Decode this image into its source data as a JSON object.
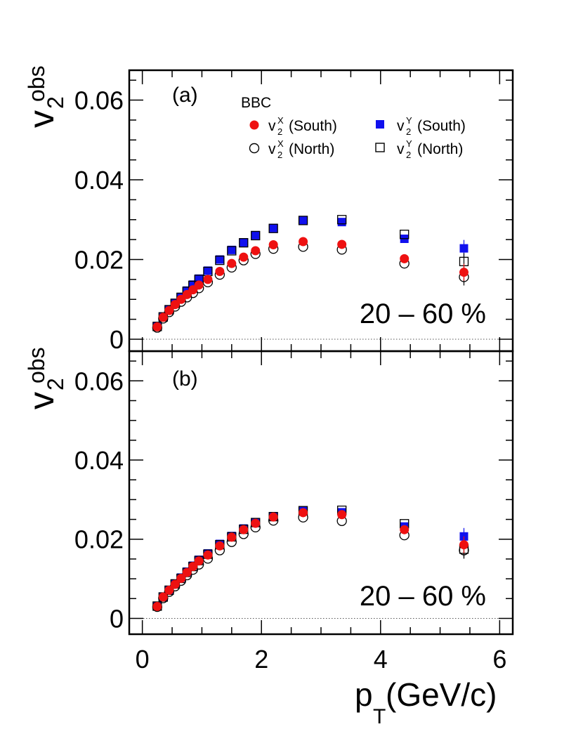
{
  "chart_data": [
    {
      "type": "scatter",
      "panel_label": "(a)",
      "centrality": "20 – 60 %",
      "legend_title": "BBC",
      "ylim": [
        -0.003,
        0.0675
      ],
      "xlim": [
        -0.22,
        6.22
      ],
      "yticks": [
        "0",
        "0.02",
        "0.04",
        "0.06"
      ],
      "reference_line_y": 0,
      "series": [
        {
          "name": "(South)",
          "sym_sup": "X",
          "marker": "filled-circle",
          "color": "#ee1111",
          "x": [
            0.25,
            0.35,
            0.45,
            0.55,
            0.65,
            0.75,
            0.85,
            0.95,
            1.1,
            1.3,
            1.5,
            1.7,
            1.9,
            2.2,
            2.7,
            3.35,
            4.4,
            5.4
          ],
          "y": [
            0.0031,
            0.0055,
            0.0072,
            0.0087,
            0.01,
            0.0112,
            0.0124,
            0.0136,
            0.015,
            0.017,
            0.019,
            0.0206,
            0.0222,
            0.0237,
            0.0245,
            0.0238,
            0.0202,
            0.0168
          ]
        },
        {
          "name": "(North)",
          "sym_sup": "X",
          "marker": "open-circle",
          "color": "#000000",
          "x": [
            0.25,
            0.35,
            0.45,
            0.55,
            0.65,
            0.75,
            0.85,
            0.95,
            1.1,
            1.3,
            1.5,
            1.7,
            1.9,
            2.2,
            2.7,
            3.35,
            4.4,
            5.4
          ],
          "y": [
            0.0029,
            0.0052,
            0.0068,
            0.0082,
            0.0094,
            0.0105,
            0.0116,
            0.0128,
            0.0143,
            0.0162,
            0.018,
            0.0198,
            0.0214,
            0.0227,
            0.0232,
            0.0225,
            0.019,
            0.0156
          ]
        },
        {
          "name": "(South)",
          "sym_sup": "Y",
          "marker": "filled-square",
          "color": "#1010ee",
          "x": [
            0.25,
            0.35,
            0.45,
            0.55,
            0.65,
            0.75,
            0.85,
            0.95,
            1.1,
            1.3,
            1.5,
            1.7,
            1.9,
            2.2,
            2.7,
            3.35,
            4.4,
            5.4
          ],
          "y": [
            0.0033,
            0.0057,
            0.0075,
            0.0091,
            0.0106,
            0.0122,
            0.0137,
            0.0152,
            0.0172,
            0.02,
            0.0224,
            0.0243,
            0.0261,
            0.0279,
            0.0298,
            0.0294,
            0.0252,
            0.0228
          ]
        },
        {
          "name": "(North)",
          "sym_sup": "Y",
          "marker": "open-square",
          "color": "#000000",
          "x": [
            0.25,
            0.35,
            0.45,
            0.55,
            0.65,
            0.75,
            0.85,
            0.95,
            1.1,
            1.3,
            1.5,
            1.7,
            1.9,
            2.2,
            2.7,
            3.35,
            4.4,
            5.4
          ],
          "y": [
            0.0032,
            0.0056,
            0.0074,
            0.009,
            0.0105,
            0.012,
            0.0135,
            0.015,
            0.017,
            0.0198,
            0.0222,
            0.0242,
            0.026,
            0.0278,
            0.0298,
            0.03,
            0.0263,
            0.0195
          ]
        }
      ]
    },
    {
      "type": "scatter",
      "panel_label": "(b)",
      "centrality": "20 – 60 %",
      "ylim": [
        -0.004,
        0.0675
      ],
      "xlim": [
        -0.22,
        6.22
      ],
      "yticks": [
        "0",
        "0.02",
        "0.04",
        "0.06"
      ],
      "xticks": [
        "0",
        "2",
        "4",
        "6"
      ],
      "xlabel_main": "p",
      "xlabel_sub": "T",
      "xlabel_units": " (GeV/c)",
      "reference_line_y": 0,
      "series": [
        {
          "name": "(South)",
          "sym_sup": "X",
          "marker": "filled-circle",
          "color": "#ee1111",
          "x": [
            0.25,
            0.35,
            0.45,
            0.55,
            0.65,
            0.75,
            0.85,
            0.95,
            1.1,
            1.3,
            1.5,
            1.7,
            1.9,
            2.2,
            2.7,
            3.35,
            4.4,
            5.4
          ],
          "y": [
            0.003,
            0.0054,
            0.0071,
            0.0086,
            0.0101,
            0.0116,
            0.0131,
            0.0145,
            0.016,
            0.0183,
            0.0205,
            0.0224,
            0.024,
            0.0256,
            0.0267,
            0.0262,
            0.0224,
            0.0186
          ]
        },
        {
          "name": "(North)",
          "sym_sup": "X",
          "marker": "open-circle",
          "color": "#000000",
          "x": [
            0.25,
            0.35,
            0.45,
            0.55,
            0.65,
            0.75,
            0.85,
            0.95,
            1.1,
            1.3,
            1.5,
            1.7,
            1.9,
            2.2,
            2.7,
            3.35,
            4.4,
            5.4
          ],
          "y": [
            0.0029,
            0.0051,
            0.0067,
            0.0081,
            0.0095,
            0.0109,
            0.0123,
            0.0136,
            0.0151,
            0.0172,
            0.0193,
            0.0213,
            0.023,
            0.0247,
            0.0255,
            0.0246,
            0.021,
            0.0172
          ]
        },
        {
          "name": "(South)",
          "sym_sup": "Y",
          "marker": "filled-square",
          "color": "#1010ee",
          "x": [
            0.25,
            0.35,
            0.45,
            0.55,
            0.65,
            0.75,
            0.85,
            0.95,
            1.1,
            1.3,
            1.5,
            1.7,
            1.9,
            2.2,
            2.7,
            3.35,
            4.4,
            5.4
          ],
          "y": [
            0.0031,
            0.0055,
            0.0072,
            0.0088,
            0.0103,
            0.0118,
            0.0133,
            0.0148,
            0.0164,
            0.0188,
            0.0208,
            0.0227,
            0.0243,
            0.0258,
            0.0272,
            0.0268,
            0.0232,
            0.0207
          ]
        },
        {
          "name": "(North)",
          "sym_sup": "Y",
          "marker": "open-square",
          "color": "#000000",
          "x": [
            0.25,
            0.35,
            0.45,
            0.55,
            0.65,
            0.75,
            0.85,
            0.95,
            1.1,
            1.3,
            1.5,
            1.7,
            1.9,
            2.2,
            2.7,
            3.35,
            4.4,
            5.4
          ],
          "y": [
            0.0031,
            0.0054,
            0.0071,
            0.0087,
            0.0101,
            0.0116,
            0.0131,
            0.0146,
            0.0162,
            0.0186,
            0.0206,
            0.0225,
            0.0242,
            0.0257,
            0.0272,
            0.0273,
            0.0239,
            0.0175
          ]
        }
      ]
    }
  ],
  "ylabel": {
    "main": "v",
    "sub": "2",
    "sup": "obs"
  },
  "legend_sym": "v",
  "legend_sym_sub": "2"
}
